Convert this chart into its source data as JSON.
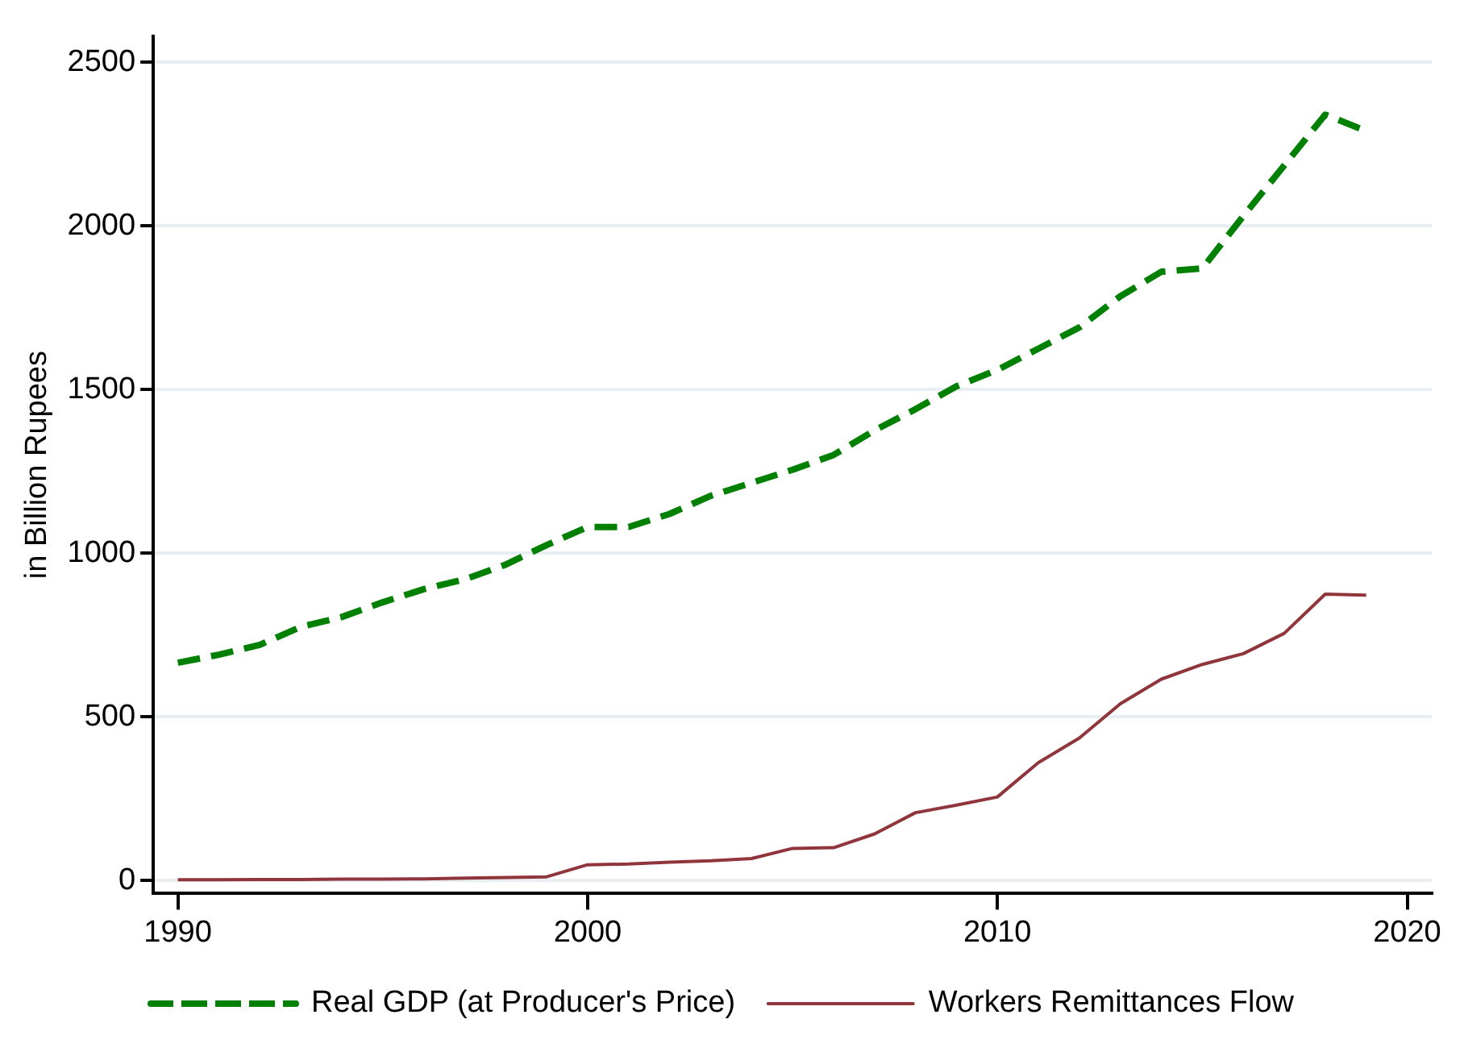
{
  "chart_data": {
    "type": "line",
    "ylabel": "in Billion Rupees",
    "x": [
      1990,
      1991,
      1992,
      1993,
      1994,
      1995,
      1996,
      1997,
      1998,
      1999,
      2000,
      2001,
      2002,
      2003,
      2004,
      2005,
      2006,
      2007,
      2008,
      2009,
      2010,
      2011,
      2012,
      2013,
      2014,
      2015,
      2016,
      2017,
      2018,
      2019
    ],
    "series": [
      {
        "name": "Real GDP (at Producer's Price)",
        "color": "#008000",
        "line_style": "dashed",
        "values": [
          665,
          690,
          720,
          775,
          805,
          850,
          890,
          920,
          965,
          1025,
          1080,
          1080,
          1120,
          1175,
          1215,
          1255,
          1300,
          1375,
          1440,
          1510,
          1560,
          1625,
          1690,
          1785,
          1860,
          1870,
          2030,
          2185,
          2340,
          2290
        ]
      },
      {
        "name": "Workers Remittances Flow",
        "color": "#90353b",
        "line_style": "solid",
        "values": [
          2,
          2,
          3,
          3,
          4,
          4,
          5,
          7,
          9,
          11,
          48,
          50,
          56,
          60,
          67,
          98,
          100,
          142,
          207,
          230,
          255,
          360,
          435,
          540,
          615,
          660,
          693,
          755,
          875,
          872
        ]
      }
    ],
    "xlim": [
      1989.4,
      2020.6
    ],
    "xticks": [
      1990,
      2000,
      2010,
      2020
    ],
    "ylim": [
      -40,
      2580
    ],
    "yticks": [
      0,
      500,
      1000,
      1500,
      2000,
      2500
    ],
    "grid": "y",
    "legend": "bottom",
    "marker": "none"
  }
}
